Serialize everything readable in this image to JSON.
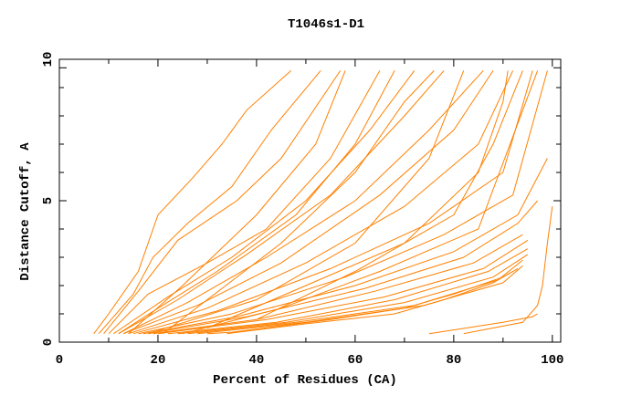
{
  "chart_data": {
    "type": "line",
    "title": "T1046s1-D1",
    "xlabel": "Percent of Residues (CA)",
    "ylabel": "Distance Cutoff, A",
    "xlim": [
      0,
      101.7
    ],
    "ylim": [
      0,
      10
    ],
    "xticks": [
      "0",
      "20",
      "40",
      "60",
      "80",
      "100"
    ],
    "xtick_values": [
      0,
      20,
      40,
      60,
      80,
      100
    ],
    "yticks": [
      "0",
      "5",
      "10"
    ],
    "ytick_values": [
      0,
      5,
      10
    ],
    "grid": false,
    "line_color": "#ff8000",
    "series": [
      {
        "points": [
          [
            7,
            0.3
          ],
          [
            10,
            1
          ],
          [
            16,
            2.5
          ],
          [
            20,
            4.5
          ],
          [
            27,
            5.8
          ],
          [
            33,
            7
          ],
          [
            38,
            8.2
          ],
          [
            47,
            9.6
          ]
        ]
      },
      {
        "points": [
          [
            8,
            0.3
          ],
          [
            15,
            1.7
          ],
          [
            19,
            3
          ],
          [
            26,
            4.2
          ],
          [
            35,
            5.5
          ],
          [
            43,
            7.5
          ],
          [
            53,
            9.6
          ]
        ]
      },
      {
        "points": [
          [
            9,
            0.3
          ],
          [
            16,
            1.8
          ],
          [
            24,
            3.6
          ],
          [
            36,
            5
          ],
          [
            45,
            6.5
          ],
          [
            57,
            9.6
          ]
        ]
      },
      {
        "points": [
          [
            10,
            0.3
          ],
          [
            18,
            1.7
          ],
          [
            30,
            2.8
          ],
          [
            42,
            4
          ],
          [
            55,
            6.5
          ],
          [
            65,
            9.6
          ]
        ]
      },
      {
        "points": [
          [
            11,
            0.3
          ],
          [
            22,
            1.6
          ],
          [
            35,
            3
          ],
          [
            50,
            5
          ],
          [
            63,
            7.5
          ],
          [
            72,
            9.6
          ]
        ]
      },
      {
        "points": [
          [
            12,
            0.3
          ],
          [
            24,
            1.5
          ],
          [
            38,
            3.1
          ],
          [
            55,
            5.2
          ],
          [
            70,
            8
          ],
          [
            78,
            9.6
          ]
        ]
      },
      {
        "points": [
          [
            13,
            0.3
          ],
          [
            26,
            1.4
          ],
          [
            42,
            3
          ],
          [
            60,
            5
          ],
          [
            75,
            7.5
          ],
          [
            86,
            9.6
          ]
        ]
      },
      {
        "points": [
          [
            13,
            0.3
          ],
          [
            28,
            1.3
          ],
          [
            45,
            2.8
          ],
          [
            65,
            5.2
          ],
          [
            80,
            7.5
          ],
          [
            88,
            9.6
          ]
        ]
      },
      {
        "points": [
          [
            14,
            0.3
          ],
          [
            30,
            1.2
          ],
          [
            50,
            2.8
          ],
          [
            70,
            4.8
          ],
          [
            85,
            7
          ],
          [
            92,
            9.6
          ]
        ]
      },
      {
        "points": [
          [
            15,
            0.3
          ],
          [
            32,
            1.1
          ],
          [
            55,
            2.6
          ],
          [
            75,
            4.2
          ],
          [
            90,
            6
          ],
          [
            96,
            9.6
          ]
        ]
      },
      {
        "points": [
          [
            16,
            0.3
          ],
          [
            35,
            1
          ],
          [
            58,
            2.3
          ],
          [
            78,
            3.8
          ],
          [
            92,
            5.2
          ],
          [
            99,
            9.6
          ]
        ]
      },
      {
        "points": [
          [
            17,
            0.3
          ],
          [
            36,
            0.9
          ],
          [
            60,
            2
          ],
          [
            80,
            3.2
          ],
          [
            93,
            4.5
          ],
          [
            99,
            6.5
          ]
        ]
      },
      {
        "points": [
          [
            18,
            0.3
          ],
          [
            38,
            0.9
          ],
          [
            62,
            1.9
          ],
          [
            82,
            3
          ],
          [
            93,
            4.2
          ],
          [
            97,
            5
          ]
        ]
      },
      {
        "points": [
          [
            19,
            0.3
          ],
          [
            40,
            0.8
          ],
          [
            64,
            1.8
          ],
          [
            84,
            2.8
          ],
          [
            94,
            3.8
          ]
        ]
      },
      {
        "points": [
          [
            20,
            0.3
          ],
          [
            42,
            0.8
          ],
          [
            66,
            1.6
          ],
          [
            86,
            2.6
          ],
          [
            95,
            3.6
          ]
        ]
      },
      {
        "points": [
          [
            22,
            0.3
          ],
          [
            44,
            0.7
          ],
          [
            68,
            1.5
          ],
          [
            87,
            2.5
          ],
          [
            95,
            3.3
          ]
        ]
      },
      {
        "points": [
          [
            24,
            0.3
          ],
          [
            46,
            0.7
          ],
          [
            70,
            1.4
          ],
          [
            88,
            2.3
          ],
          [
            95,
            3.1
          ]
        ]
      },
      {
        "points": [
          [
            26,
            0.3
          ],
          [
            48,
            0.7
          ],
          [
            72,
            1.3
          ],
          [
            89,
            2.2
          ],
          [
            94,
            2.9
          ]
        ]
      },
      {
        "points": [
          [
            28,
            0.3
          ],
          [
            50,
            0.7
          ],
          [
            74,
            1.3
          ],
          [
            90,
            2.1
          ],
          [
            94,
            2.7
          ]
        ]
      },
      {
        "points": [
          [
            30,
            0.3
          ],
          [
            35,
            0.35
          ],
          [
            55,
            0.8
          ],
          [
            70,
            1.2
          ],
          [
            80,
            1.7
          ],
          [
            90,
            2.3
          ],
          [
            93,
            2.6
          ]
        ]
      },
      {
        "points": [
          [
            34,
            0.3
          ],
          [
            50,
            0.65
          ],
          [
            68,
            1
          ],
          [
            78,
            1.5
          ],
          [
            88,
            2.1
          ],
          [
            92,
            2.5
          ]
        ]
      },
      {
        "points": [
          [
            21,
            0.3
          ],
          [
            30,
            1.5
          ],
          [
            45,
            3.5
          ],
          [
            60,
            6
          ],
          [
            70,
            8.5
          ],
          [
            76,
            9.6
          ]
        ]
      },
      {
        "points": [
          [
            14,
            0.3
          ],
          [
            25,
            2
          ],
          [
            40,
            4.5
          ],
          [
            52,
            7
          ],
          [
            58,
            9.6
          ]
        ]
      },
      {
        "points": [
          [
            30,
            0.5
          ],
          [
            50,
            2
          ],
          [
            70,
            3.5
          ],
          [
            85,
            6
          ],
          [
            90,
            8.5
          ],
          [
            91,
            9.6
          ]
        ]
      },
      {
        "points": [
          [
            40,
            0.8
          ],
          [
            60,
            2.5
          ],
          [
            80,
            4.5
          ],
          [
            88,
            7
          ],
          [
            94,
            9.6
          ]
        ]
      },
      {
        "points": [
          [
            18,
            0.3
          ],
          [
            40,
            1.5
          ],
          [
            60,
            3.5
          ],
          [
            75,
            6.5
          ],
          [
            82,
            9.6
          ]
        ]
      },
      {
        "points": [
          [
            25,
            0.3
          ],
          [
            45,
            1.2
          ],
          [
            65,
            2.5
          ],
          [
            85,
            4
          ],
          [
            97,
            9.6
          ]
        ]
      },
      {
        "points": [
          [
            12,
            0.3
          ],
          [
            20,
            1.2
          ],
          [
            32,
            2.5
          ],
          [
            48,
            4.5
          ],
          [
            60,
            7
          ],
          [
            68,
            9.6
          ]
        ]
      },
      {
        "points": [
          [
            75,
            0.3
          ],
          [
            90,
            0.7
          ],
          [
            96,
            0.9
          ],
          [
            97,
            1.0
          ]
        ]
      },
      {
        "points": [
          [
            82,
            0.3
          ],
          [
            94,
            0.7
          ],
          [
            97,
            1.3
          ],
          [
            98,
            2
          ],
          [
            99,
            3.5
          ],
          [
            100,
            4.8
          ]
        ]
      }
    ]
  }
}
